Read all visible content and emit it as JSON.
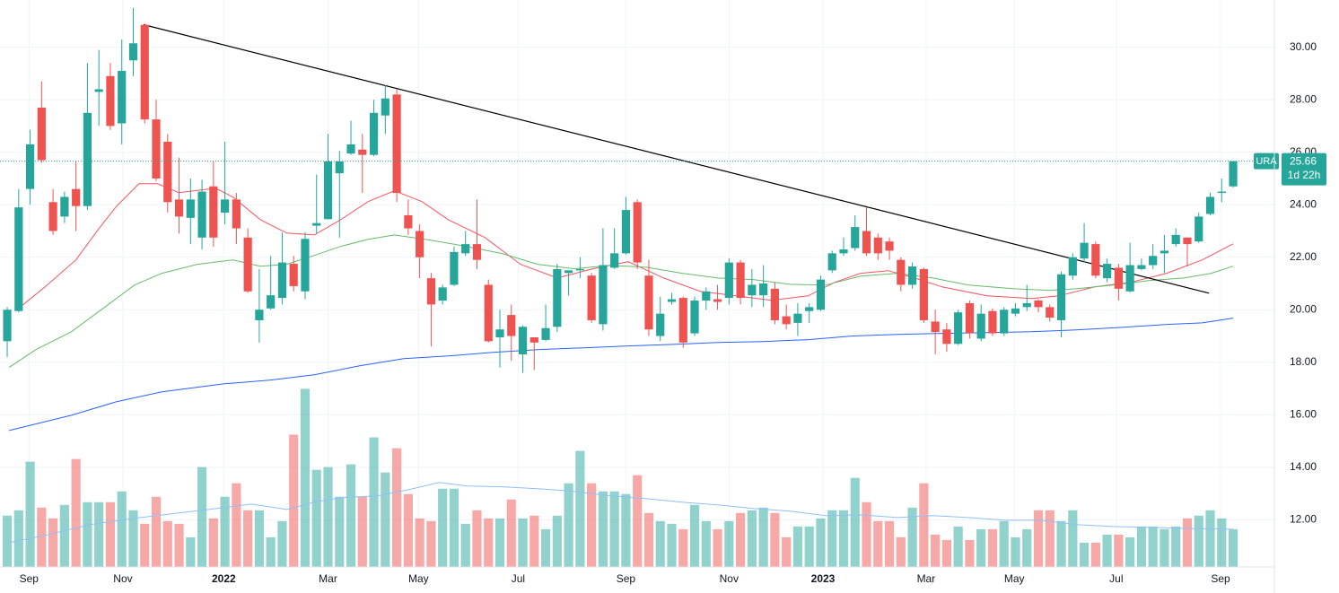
{
  "chart_data": {
    "type": "candlestick",
    "symbol": "URA",
    "last_price": 25.66,
    "countdown": "1d 22h",
    "up_color": "#26a69a",
    "down_color": "#ef5350",
    "xlim": [
      -0.63,
      110.6
    ],
    "ylim": [
      10.2,
      31.8
    ],
    "vlim": [
      0,
      21
    ],
    "xticks": [
      {
        "value": 1.9,
        "label": "Sep"
      },
      {
        "value": 10.1,
        "label": "Nov"
      },
      {
        "value": 18.9,
        "label": "2022"
      },
      {
        "value": 28.0,
        "label": "Mar"
      },
      {
        "value": 35.9,
        "label": "May"
      },
      {
        "value": 44.6,
        "label": "Jul"
      },
      {
        "value": 54.0,
        "label": "Sep"
      },
      {
        "value": 63.0,
        "label": "Nov"
      },
      {
        "value": 71.2,
        "label": "2023"
      },
      {
        "value": 80.2,
        "label": "Mar"
      },
      {
        "value": 87.9,
        "label": "May"
      },
      {
        "value": 96.8,
        "label": "Jul"
      },
      {
        "value": 105.9,
        "label": "Sep"
      }
    ],
    "yticks": [
      {
        "value": 12,
        "label": "12.00"
      },
      {
        "value": 14,
        "label": "14.00"
      },
      {
        "value": 16,
        "label": "16.00"
      },
      {
        "value": 18,
        "label": "18.00"
      },
      {
        "value": 20,
        "label": "20.00"
      },
      {
        "value": 22,
        "label": "22.00"
      },
      {
        "value": 24,
        "label": "24.00"
      },
      {
        "value": 26,
        "label": "26.00"
      },
      {
        "value": 28,
        "label": "28.00"
      },
      {
        "value": 30,
        "label": "30.00"
      }
    ],
    "grid": true,
    "x": [
      0,
      1,
      2,
      3,
      4,
      5,
      6,
      7,
      8,
      9,
      10,
      11,
      12,
      13,
      14,
      15,
      16,
      17,
      18,
      19,
      20,
      21,
      22,
      23,
      24,
      25,
      26,
      27,
      28,
      29,
      30,
      31,
      32,
      33,
      34,
      35,
      36,
      37,
      38,
      39,
      40,
      41,
      42,
      43,
      44,
      45,
      46,
      47,
      48,
      49,
      50,
      51,
      52,
      53,
      54,
      55,
      56,
      57,
      58,
      59,
      60,
      61,
      62,
      63,
      64,
      65,
      66,
      67,
      68,
      69,
      70,
      71,
      72,
      73,
      74,
      75,
      76,
      77,
      78,
      79,
      80,
      81,
      82,
      83,
      84,
      85,
      86,
      87,
      88,
      89,
      90,
      91,
      92,
      93,
      94,
      95,
      96,
      97,
      98,
      99,
      100,
      101,
      102,
      103,
      104,
      105,
      106,
      107
    ],
    "open": [
      18.8,
      19.95,
      24.6,
      27.7,
      24.1,
      23.55,
      24.6,
      23.95,
      28.3,
      28.9,
      27.1,
      29.5,
      30.85,
      27.25,
      26.4,
      24.2,
      23.5,
      22.75,
      24.7,
      23.7,
      24.2,
      22.75,
      19.6,
      20.05,
      20.45,
      21.75,
      20.7,
      23.2,
      23.45,
      25.2,
      25.95,
      26.1,
      25.9,
      27.4,
      28.2,
      23.6,
      23.0,
      21.2,
      20.35,
      20.95,
      22.15,
      22.5,
      20.95,
      18.95,
      19.8,
      18.3,
      18.95,
      18.85,
      19.35,
      21.4,
      21.5,
      21.3,
      19.45,
      21.6,
      22.15,
      24.1,
      21.3,
      19.0,
      20.3,
      20.45,
      19.1,
      20.35,
      20.4,
      20.45,
      21.8,
      20.55,
      20.55,
      20.8,
      19.75,
      19.5,
      19.95,
      20.0,
      21.5,
      22.15,
      22.35,
      23.0,
      22.75,
      22.6,
      21.9,
      20.95,
      21.55,
      19.55,
      19.25,
      18.7,
      20.25,
      18.9,
      19.95,
      19.1,
      19.85,
      20.1,
      20.35,
      20.1,
      19.6,
      21.3,
      21.95,
      22.5,
      21.2,
      21.6,
      20.7,
      21.55,
      21.7,
      22.15,
      22.5,
      22.75,
      22.6,
      23.65,
      24.45,
      24.7
    ],
    "high": [
      20.1,
      24.6,
      26.85,
      28.7,
      24.6,
      24.5,
      25.65,
      29.4,
      29.9,
      29.4,
      30.3,
      31.5,
      30.9,
      28.0,
      26.7,
      25.8,
      25.0,
      24.95,
      25.65,
      26.4,
      24.45,
      23.1,
      21.55,
      22.05,
      22.95,
      22.05,
      22.95,
      25.15,
      26.7,
      26.05,
      27.2,
      26.7,
      28.0,
      28.55,
      28.4,
      24.2,
      23.25,
      21.4,
      20.95,
      22.4,
      23.0,
      24.2,
      21.15,
      20.0,
      20.2,
      19.4,
      18.95,
      20.2,
      21.75,
      21.5,
      22.0,
      21.4,
      23.1,
      23.1,
      24.3,
      24.2,
      21.9,
      20.5,
      20.65,
      20.5,
      20.5,
      20.85,
      20.95,
      21.95,
      21.9,
      21.55,
      21.7,
      21.05,
      20.2,
      20.25,
      20.25,
      21.3,
      22.25,
      22.75,
      23.6,
      23.9,
      22.9,
      22.75,
      22.0,
      21.8,
      21.6,
      20.0,
      19.5,
      20.0,
      20.35,
      20.2,
      20.05,
      20.1,
      20.25,
      20.95,
      20.4,
      20.2,
      21.45,
      22.15,
      23.3,
      22.6,
      21.95,
      21.75,
      22.55,
      21.95,
      22.5,
      22.85,
      23.1,
      22.75,
      23.7,
      24.45,
      25.0,
      25.66
    ],
    "low": [
      18.2,
      19.9,
      24.0,
      25.6,
      22.85,
      23.3,
      23.0,
      23.8,
      27.0,
      26.85,
      26.3,
      28.9,
      27.1,
      24.9,
      23.7,
      22.9,
      22.5,
      22.3,
      22.4,
      23.25,
      22.5,
      20.65,
      18.75,
      20.0,
      20.2,
      20.7,
      20.4,
      22.9,
      23.45,
      22.75,
      25.9,
      24.45,
      25.85,
      26.7,
      24.1,
      22.85,
      21.2,
      18.6,
      20.2,
      20.9,
      22.05,
      21.55,
      18.75,
      17.8,
      18.05,
      17.6,
      17.7,
      18.8,
      19.15,
      20.55,
      21.2,
      19.5,
      19.2,
      21.55,
      22.1,
      21.55,
      19.0,
      18.8,
      20.2,
      18.55,
      19.0,
      20.0,
      20.0,
      20.2,
      20.2,
      20.1,
      20.1,
      19.45,
      19.25,
      19.0,
      19.5,
      19.95,
      21.4,
      22.05,
      22.25,
      22.05,
      21.9,
      21.9,
      20.7,
      20.8,
      19.5,
      18.3,
      18.4,
      18.65,
      18.9,
      18.8,
      19.0,
      19.0,
      19.75,
      19.95,
      19.9,
      19.55,
      18.95,
      21.15,
      21.8,
      21.2,
      21.05,
      20.35,
      20.65,
      21.5,
      21.55,
      21.4,
      22.4,
      21.65,
      22.55,
      23.6,
      24.1,
      24.65
    ],
    "close": [
      20.0,
      23.9,
      26.3,
      25.7,
      23.0,
      24.3,
      23.95,
      27.5,
      28.4,
      27.0,
      29.1,
      30.15,
      27.25,
      25.0,
      24.1,
      23.55,
      24.2,
      24.5,
      22.75,
      24.2,
      23.1,
      20.7,
      20.0,
      20.55,
      21.8,
      20.9,
      22.7,
      23.3,
      25.65,
      25.65,
      26.3,
      25.9,
      27.5,
      28.05,
      24.45,
      23.1,
      22.0,
      20.2,
      20.85,
      22.2,
      22.5,
      21.9,
      18.8,
      19.25,
      19.0,
      19.35,
      18.75,
      19.3,
      21.55,
      21.5,
      21.55,
      19.6,
      21.7,
      22.15,
      23.8,
      21.8,
      19.25,
      19.85,
      20.4,
      18.75,
      20.35,
      20.7,
      20.3,
      21.8,
      20.45,
      20.95,
      21.0,
      19.6,
      19.45,
      19.85,
      20.1,
      21.15,
      22.15,
      22.3,
      23.15,
      22.15,
      22.15,
      22.25,
      20.95,
      21.65,
      19.6,
      19.15,
      18.7,
      19.9,
      19.1,
      19.85,
      19.1,
      20.0,
      20.05,
      20.25,
      20.1,
      19.7,
      21.35,
      22.0,
      22.55,
      21.3,
      21.75,
      20.8,
      21.7,
      21.7,
      22.05,
      22.25,
      22.85,
      22.5,
      23.55,
      24.3,
      24.5,
      25.66
    ],
    "volume": [
      1.9,
      2.1,
      3.9,
      2.2,
      1.8,
      2.3,
      4.0,
      2.4,
      2.4,
      2.4,
      2.8,
      2.1,
      1.6,
      2.6,
      1.7,
      1.6,
      1.1,
      3.7,
      1.8,
      2.6,
      3.1,
      2.1,
      2.1,
      1.1,
      1.7,
      4.9,
      6.6,
      3.6,
      3.7,
      2.6,
      3.8,
      2.6,
      4.8,
      3.5,
      4.4,
      2.7,
      1.8,
      1.7,
      2.9,
      2.9,
      1.6,
      2.1,
      1.8,
      1.8,
      2.5,
      1.8,
      1.9,
      1.4,
      1.9,
      3.1,
      4.3,
      3.1,
      2.8,
      2.8,
      2.7,
      3.4,
      2.0,
      1.7,
      1.6,
      1.4,
      2.3,
      1.7,
      1.4,
      1.7,
      2.0,
      2.1,
      2.2,
      2.0,
      1.1,
      1.5,
      1.5,
      1.8,
      2.1,
      2.1,
      3.3,
      2.4,
      1.7,
      1.7,
      1.1,
      2.2,
      3.1,
      1.2,
      1.0,
      1.5,
      1.0,
      1.4,
      1.4,
      1.7,
      1.1,
      1.4,
      2.1,
      2.1,
      1.7,
      2.1,
      0.9,
      0.9,
      1.2,
      1.2,
      1.1,
      1.5,
      1.5,
      1.4,
      1.5,
      1.8,
      1.9,
      2.1,
      1.8,
      1.4
    ],
    "volume_ma": {
      "color": "#90bff9",
      "x": [
        0.16,
        3.3,
        7.2,
        11.1,
        15.0,
        18.95,
        21.3,
        24.4,
        26.8,
        29.1,
        32.3,
        35.4,
        37.7,
        40.1,
        43.2,
        46.3,
        49.5,
        52.6,
        55.8,
        58.9,
        62.0,
        65.1,
        68.3,
        71.4,
        74.5,
        77.7,
        80.8,
        83.9,
        87.1,
        90.2,
        93.3,
        96.5,
        99.6,
        102.7,
        107.0
      ],
      "values": [
        0.9,
        1.17,
        1.57,
        1.8,
        2.0,
        2.2,
        2.33,
        2.13,
        2.4,
        2.57,
        2.63,
        2.9,
        3.13,
        3.0,
        2.97,
        2.9,
        2.8,
        2.63,
        2.53,
        2.4,
        2.3,
        2.17,
        2.07,
        1.9,
        1.93,
        1.83,
        1.9,
        1.83,
        1.73,
        1.73,
        1.57,
        1.5,
        1.47,
        1.43,
        1.4
      ]
    },
    "moving_averages": [
      {
        "color": "#f7525f",
        "x": [
          0.9,
          3.3,
          6.0,
          8.0,
          9.55,
          11.5,
          13.1,
          15.0,
          18.2,
          19.7,
          22.1,
          24.4,
          26.8,
          29.1,
          31.5,
          33.8,
          36.2,
          38.5,
          41.7,
          44.8,
          48.0,
          51.1,
          54.2,
          57.3,
          60.5,
          63.6,
          66.7,
          69.9,
          72.2,
          74.5,
          76.9,
          79.2,
          81.6,
          85.5,
          89.4,
          91.8,
          94.9,
          98.0,
          101.2,
          104.3,
          107.0
        ],
        "values": [
          20.02,
          20.87,
          21.9,
          23.09,
          23.95,
          24.8,
          24.8,
          24.46,
          24.63,
          24.29,
          23.43,
          22.92,
          22.85,
          23.43,
          24.12,
          24.53,
          24.12,
          23.43,
          22.75,
          21.73,
          21.21,
          21.56,
          21.83,
          21.21,
          20.7,
          20.53,
          20.36,
          20.53,
          21.04,
          21.39,
          21.49,
          21.21,
          20.87,
          20.53,
          20.43,
          20.53,
          20.87,
          21.04,
          21.39,
          21.9,
          22.51
        ]
      },
      {
        "color": "#66bb6a",
        "x": [
          0.16,
          2.5,
          5.6,
          8.8,
          11.1,
          13.5,
          16.6,
          19.7,
          22.1,
          24.4,
          26.8,
          29.1,
          31.5,
          33.8,
          37.0,
          40.1,
          43.2,
          46.3,
          49.5,
          52.6,
          55.8,
          58.9,
          62.0,
          65.1,
          68.3,
          71.4,
          74.5,
          77.7,
          80.8,
          83.9,
          87.9,
          91.0,
          93.3,
          96.5,
          99.6,
          102.7,
          105.1,
          107.0
        ],
        "values": [
          17.8,
          18.48,
          19.16,
          20.19,
          20.94,
          21.39,
          21.73,
          21.9,
          21.66,
          21.73,
          22.07,
          22.41,
          22.68,
          22.85,
          22.65,
          22.41,
          22.14,
          21.73,
          21.56,
          21.69,
          21.62,
          21.39,
          21.21,
          21.15,
          20.97,
          20.94,
          21.28,
          21.39,
          21.21,
          20.94,
          20.8,
          20.74,
          20.8,
          20.94,
          21.11,
          21.21,
          21.39,
          21.66
        ]
      },
      {
        "color": "#2962ff",
        "x": [
          0.16,
          5.6,
          9.55,
          13.5,
          18.95,
          22.9,
          26.8,
          30.7,
          34.6,
          38.5,
          42.4,
          46.3,
          50.3,
          54.2,
          58.1,
          62.0,
          65.9,
          69.9,
          73.8,
          77.7,
          81.6,
          85.5,
          89.4,
          93.3,
          97.3,
          101.2,
          104.3,
          107.0
        ],
        "values": [
          15.4,
          15.98,
          16.5,
          16.87,
          17.18,
          17.32,
          17.52,
          17.86,
          18.14,
          18.24,
          18.38,
          18.48,
          18.55,
          18.62,
          18.68,
          18.75,
          18.79,
          18.86,
          19.0,
          19.06,
          19.1,
          19.13,
          19.16,
          19.23,
          19.33,
          19.44,
          19.5,
          19.68
        ]
      }
    ],
    "trendline": {
      "color": "#000000",
      "x": [
        11.9,
        104.9
      ],
      "values": [
        30.86,
        20.63
      ]
    }
  }
}
